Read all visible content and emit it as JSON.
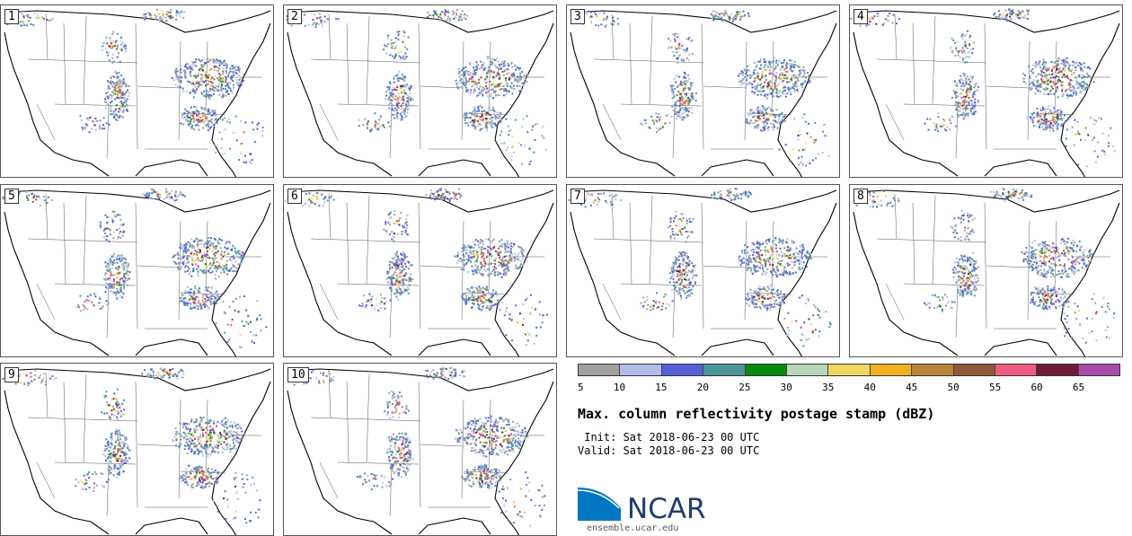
{
  "panels": [
    {
      "label": "1"
    },
    {
      "label": "2"
    },
    {
      "label": "3"
    },
    {
      "label": "4"
    },
    {
      "label": "5"
    },
    {
      "label": "6"
    },
    {
      "label": "7"
    },
    {
      "label": "8"
    },
    {
      "label": "9"
    },
    {
      "label": "10"
    }
  ],
  "colorbar": {
    "colors": [
      "#a0a0a0",
      "#b3bdea",
      "#5560d8",
      "#4b969c",
      "#0a8a0a",
      "#b8d8b8",
      "#f0d860",
      "#f0b020",
      "#b8863a",
      "#8c5a3a",
      "#f05a80",
      "#6e1a3a",
      "#a84aa8"
    ],
    "ticks": [
      "5",
      "10",
      "15",
      "20",
      "25",
      "30",
      "35",
      "40",
      "45",
      "50",
      "55",
      "60",
      "65"
    ]
  },
  "title": "Max. column reflectivity postage stamp (dBZ)",
  "init_text": " Init: Sat 2018-06-23 00 UTC",
  "valid_text": "Valid: Sat 2018-06-23 00 UTC",
  "logo_text": "NCAR",
  "site_text": "ensemble.ucar.edu",
  "colors": {
    "logo_blue": "#1b3f6d",
    "logo_accent": "#0077c0"
  }
}
